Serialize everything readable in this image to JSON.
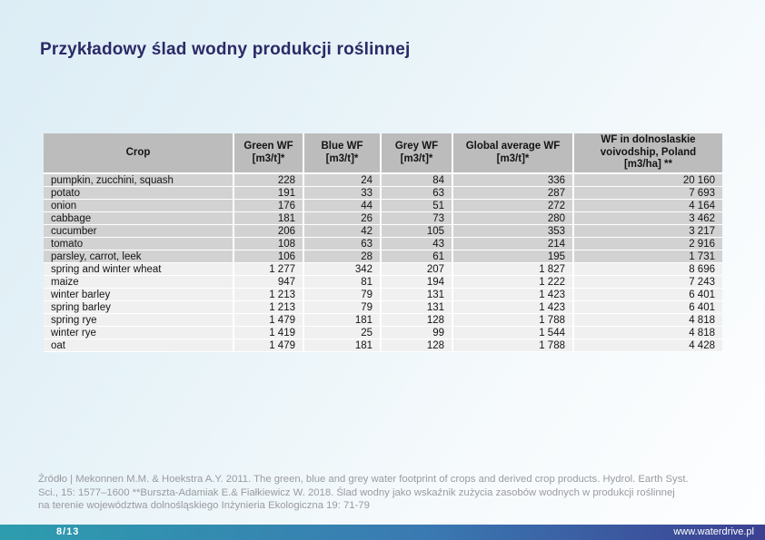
{
  "slide": {
    "title": "Przykładowy ślad wodny produkcji roślinnej"
  },
  "table": {
    "columns": [
      {
        "label": "Crop"
      },
      {
        "label": "Green WF\n[m3/t]*"
      },
      {
        "label": "Blue WF\n[m3/t]*"
      },
      {
        "label": "Grey WF\n[m3/t]*"
      },
      {
        "label": "Global average WF\n[m3/t]*"
      },
      {
        "label": "WF in  dolnoslaskie\nvoivodship, Poland\n[m3/ha] **"
      }
    ],
    "rows": [
      {
        "group": "vegetable",
        "crop": "pumpkin, zucchini, squash",
        "green": "228",
        "blue": "24",
        "grey": "84",
        "global": "336",
        "regional": "20 160"
      },
      {
        "group": "vegetable",
        "crop": "potato",
        "green": "191",
        "blue": "33",
        "grey": "63",
        "global": "287",
        "regional": "7 693"
      },
      {
        "group": "vegetable",
        "crop": "onion",
        "green": "176",
        "blue": "44",
        "grey": "51",
        "global": "272",
        "regional": "4 164"
      },
      {
        "group": "vegetable",
        "crop": "cabbage",
        "green": "181",
        "blue": "26",
        "grey": "73",
        "global": "280",
        "regional": "3 462"
      },
      {
        "group": "vegetable",
        "crop": "cucumber",
        "green": "206",
        "blue": "42",
        "grey": "105",
        "global": "353",
        "regional": "3 217"
      },
      {
        "group": "vegetable",
        "crop": "tomato",
        "green": "108",
        "blue": "63",
        "grey": "43",
        "global": "214",
        "regional": "2 916"
      },
      {
        "group": "vegetable",
        "crop": "parsley, carrot, leek",
        "green": "106",
        "blue": "28",
        "grey": "61",
        "global": "195",
        "regional": "1 731"
      },
      {
        "group": "cereal",
        "crop": "spring and winter wheat",
        "green": "1 277",
        "blue": "342",
        "grey": "207",
        "global": "1 827",
        "regional": "8 696"
      },
      {
        "group": "cereal",
        "crop": "maize",
        "green": "947",
        "blue": "81",
        "grey": "194",
        "global": "1 222",
        "regional": "7 243"
      },
      {
        "group": "cereal",
        "crop": "winter barley",
        "green": "1 213",
        "blue": "79",
        "grey": "131",
        "global": "1 423",
        "regional": "6 401"
      },
      {
        "group": "cereal",
        "crop": "spring barley",
        "green": "1 213",
        "blue": "79",
        "grey": "131",
        "global": "1 423",
        "regional": "6 401"
      },
      {
        "group": "cereal",
        "crop": "spring rye",
        "green": "1 479",
        "blue": "181",
        "grey": "128",
        "global": "1 788",
        "regional": "4 818"
      },
      {
        "group": "cereal",
        "crop": "winter rye",
        "green": "1 419",
        "blue": "25",
        "grey": "99",
        "global": "1 544",
        "regional": "4 818"
      },
      {
        "group": "cereal",
        "crop": "oat",
        "green": "1 479",
        "blue": "181",
        "grey": "128",
        "global": "1 788",
        "regional": "4 428"
      }
    ]
  },
  "footer": {
    "source_lines": [
      "Źródło | Mekonnen M.M. & Hoekstra A.Y. 2011. The green, blue and grey water footprint of crops and derived crop products. Hydrol. Earth Syst.",
      "Sci., 15: 1577–1600 **Burszta-Adamiak E.& Fiałkiewicz W. 2018. Ślad wodny jako wskaźnik zużycia zasobów wodnych w produkcji roślinnej",
      "na terenie województwa dolnośląskiego  Inżynieria Ekologiczna 19: 71-79"
    ]
  },
  "footer_bar": {
    "page": "8/13",
    "url": "www.waterdrive.pl"
  },
  "colors": {
    "title_navy": "#2b2a66",
    "header_gray": "#bcbcbc",
    "vegetable_row_gray": "#d2d2d2",
    "cereal_row_gray": "#f0f0f0",
    "footer_text_gray": "#9a9aa0",
    "bar_teal": "#2d9dae",
    "bar_blue": "#3a7ab2",
    "bar_indigo": "#3c4092",
    "background_blue": "#dcedf5"
  }
}
